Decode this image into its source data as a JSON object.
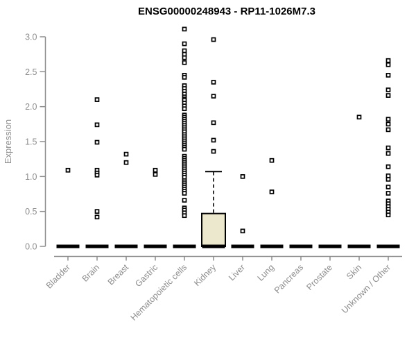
{
  "chart_data": {
    "type": "boxplot",
    "title": "ENSG00000248943 - RP11-1026M7.3",
    "xlabel": "",
    "ylabel": "Expression",
    "ylim": [
      0,
      3.1
    ],
    "yticks": [
      0,
      0.5,
      1,
      1.5,
      2,
      2.5,
      3
    ],
    "ytick_labels": [
      "0.0",
      "0.5",
      "1.0",
      "1.5",
      "2.0",
      "2.5",
      "3.0"
    ],
    "grid": false,
    "legend": "none",
    "categories": [
      "Bladder",
      "Brain",
      "Breast",
      "Gastric",
      "Hematopoietic cells",
      "Kidney",
      "Liver",
      "Lung",
      "Pancreas",
      "Prostate",
      "Skin",
      "Unknown / Other"
    ],
    "boxes": [
      {
        "category": "Bladder",
        "median": 0,
        "q1": 0,
        "q3": 0,
        "whisker_low": 0,
        "whisker_high": 0,
        "outliers": [
          1.09
        ]
      },
      {
        "category": "Brain",
        "median": 0,
        "q1": 0,
        "q3": 0,
        "whisker_low": 0,
        "whisker_high": 0,
        "outliers": [
          2.1,
          1.74,
          1.49,
          1.09,
          1.05,
          1.02,
          0.5,
          0.42
        ]
      },
      {
        "category": "Breast",
        "median": 0,
        "q1": 0,
        "q3": 0,
        "whisker_low": 0,
        "whisker_high": 0,
        "outliers": [
          1.32,
          1.2
        ]
      },
      {
        "category": "Gastric",
        "median": 0,
        "q1": 0,
        "q3": 0,
        "whisker_low": 0,
        "whisker_high": 0,
        "outliers": [
          1.09,
          1.03
        ]
      },
      {
        "category": "Hematopoietic cells",
        "median": 0,
        "q1": 0,
        "q3": 0,
        "whisker_low": 0,
        "whisker_high": 0,
        "outliers": [
          3.11,
          2.9,
          2.8,
          2.75,
          2.7,
          2.63,
          2.45,
          2.42,
          2.3,
          2.26,
          2.22,
          2.18,
          2.14,
          2.11,
          2.09,
          2.05,
          2.01,
          1.97,
          1.88,
          1.85,
          1.82,
          1.79,
          1.76,
          1.73,
          1.7,
          1.67,
          1.64,
          1.6,
          1.57,
          1.54,
          1.51,
          1.48,
          1.45,
          1.42,
          1.39,
          1.29,
          1.26,
          1.23,
          1.2,
          1.17,
          1.14,
          1.11,
          1.08,
          1.05,
          1.02,
          0.99,
          0.94,
          0.91,
          0.88,
          0.85,
          0.82,
          0.79,
          0.76,
          0.66,
          0.55,
          0.52,
          0.48,
          0.44
        ]
      },
      {
        "category": "Kidney",
        "median": 0,
        "q1": 0,
        "q3": 0.47,
        "whisker_low": 0,
        "whisker_high": 1.07,
        "outliers": [
          2.96,
          2.35,
          2.15,
          1.77,
          1.52,
          1.36
        ]
      },
      {
        "category": "Liver",
        "median": 0,
        "q1": 0,
        "q3": 0,
        "whisker_low": 0,
        "whisker_high": 0,
        "outliers": [
          1.0,
          0.22
        ]
      },
      {
        "category": "Lung",
        "median": 0,
        "q1": 0,
        "q3": 0,
        "whisker_low": 0,
        "whisker_high": 0,
        "outliers": [
          1.23,
          0.78
        ]
      },
      {
        "category": "Pancreas",
        "median": 0,
        "q1": 0,
        "q3": 0,
        "whisker_low": 0,
        "whisker_high": 0,
        "outliers": []
      },
      {
        "category": "Prostate",
        "median": 0,
        "q1": 0,
        "q3": 0,
        "whisker_low": 0,
        "whisker_high": 0,
        "outliers": []
      },
      {
        "category": "Skin",
        "median": 0,
        "q1": 0,
        "q3": 0,
        "whisker_low": 0,
        "whisker_high": 0,
        "outliers": [
          1.85
        ]
      },
      {
        "category": "Unknown / Other",
        "median": 0,
        "q1": 0,
        "q3": 0,
        "whisker_low": 0,
        "whisker_high": 0,
        "outliers": [
          2.66,
          2.6,
          2.45,
          2.24,
          2.16,
          1.82,
          1.75,
          1.67,
          1.41,
          1.33,
          1.14,
          1.01,
          0.96,
          0.85,
          0.76,
          0.65,
          0.61,
          0.57,
          0.53,
          0.49,
          0.45
        ]
      }
    ],
    "style": {
      "background": "#ffffff",
      "box_fill": "#ECE8CE",
      "box_stroke": "#000000",
      "median_color": "#000000",
      "whisker_color": "#000000",
      "point_color": "#000000",
      "point_fill": "#ffffff",
      "axis_color": "#8d8d8d",
      "tick_label_color": "#8d8d8d",
      "title_color": "#000000"
    }
  }
}
